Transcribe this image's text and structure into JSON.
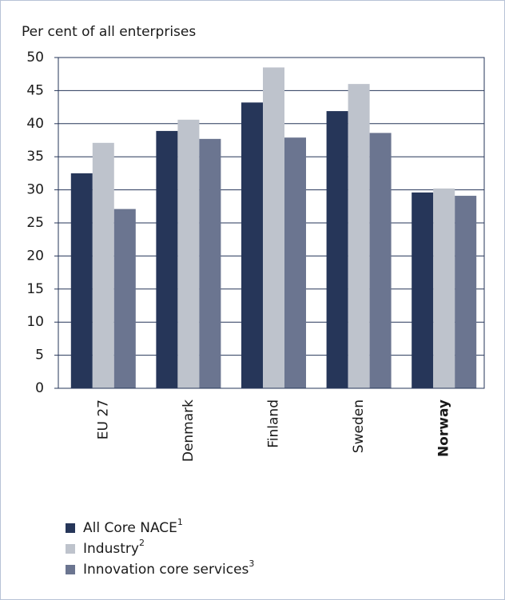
{
  "chart_data": {
    "type": "bar",
    "y_label": "Per cent of all enterprises",
    "categories": [
      "EU 27",
      "Denmark",
      "Finland",
      "Sweden",
      "Norway"
    ],
    "bold_category_index": 4,
    "series": [
      {
        "name": "All Core NACE",
        "footnote": "1",
        "color": "#263659",
        "values": [
          32.5,
          38.9,
          43.2,
          41.9,
          29.6
        ]
      },
      {
        "name": "Industry",
        "footnote": "2",
        "color": "#bec3cc",
        "values": [
          37.1,
          40.6,
          48.5,
          46.0,
          30.2
        ]
      },
      {
        "name": "Innovation core services",
        "footnote": "3",
        "color": "#6b7590",
        "values": [
          27.1,
          37.7,
          37.9,
          38.6,
          29.1
        ]
      }
    ],
    "ylim": [
      0,
      50
    ],
    "yticks": [
      0,
      5,
      10,
      15,
      20,
      25,
      30,
      35,
      40,
      45,
      50
    ],
    "grid": true
  }
}
